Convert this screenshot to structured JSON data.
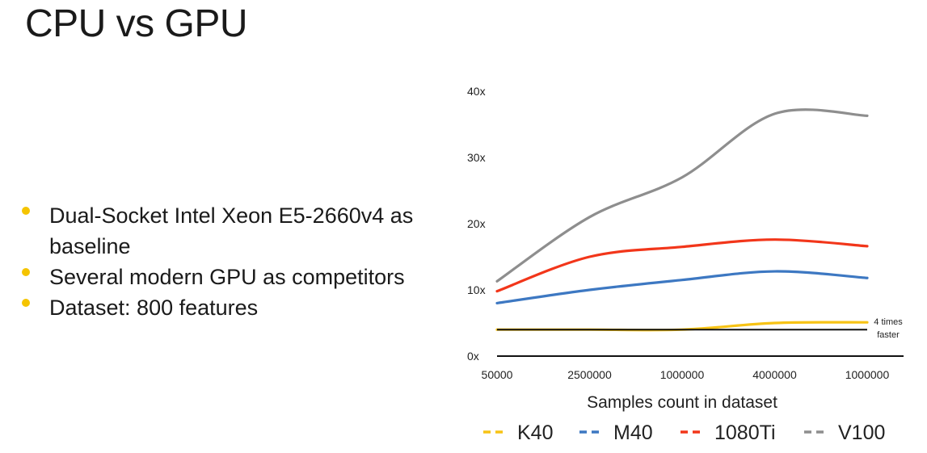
{
  "slide": {
    "title": "CPU vs GPU",
    "bullets": [
      "Dual-Socket Intel Xeon E5-2660v4 as baseline",
      "Several modern GPU as competitors",
      "Dataset: 800 features"
    ],
    "bullet_color": "#f5c400"
  },
  "chart_data": {
    "type": "line",
    "categories": [
      "50000",
      "2500000",
      "1000000",
      "4000000",
      "1000000"
    ],
    "xlabel": "Samples count in dataset",
    "ylabel": "",
    "ylim": [
      0,
      40
    ],
    "yticks": [
      "0x",
      "10x",
      "20x",
      "30x",
      "40x"
    ],
    "grid": false,
    "legend": "bottom",
    "baseline": {
      "value": 4,
      "label_line1": "4 times",
      "label_line2": "faster",
      "color": "#111111"
    },
    "series": [
      {
        "name": "K40",
        "color": "#f7c315",
        "values": [
          4,
          4,
          4,
          5,
          5.1
        ]
      },
      {
        "name": "M40",
        "color": "#3d78c2",
        "values": [
          8,
          10,
          11.5,
          12.8,
          11.8
        ]
      },
      {
        "name": "1080Ti",
        "color": "#f2361a",
        "values": [
          9.8,
          15,
          16.5,
          17.6,
          16.6
        ]
      },
      {
        "name": "V100",
        "color": "#8e8e8e",
        "values": [
          11.3,
          21,
          27,
          36.6,
          36.3
        ]
      }
    ]
  }
}
